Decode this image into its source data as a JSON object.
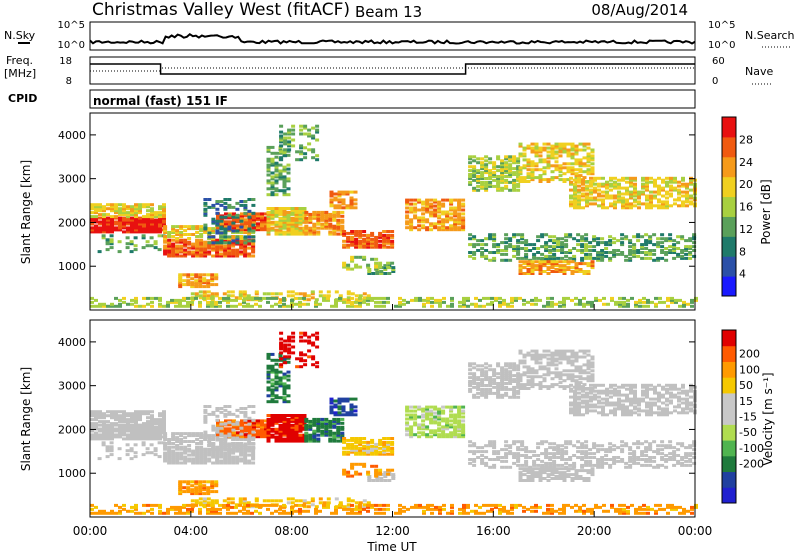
{
  "header": {
    "station": "Christmas Valley West (fitACF)",
    "beam": "Beam 13",
    "date": "08/Aug/2014",
    "mode": "normal (fast) 151 IF"
  },
  "side_labels": {
    "nsky": "N.Sky",
    "nsearch": "N.Search",
    "freq": "Freq.",
    "freq_unit": "[MHz]",
    "nave": "Nave",
    "cpid": "CPID"
  },
  "noise_axis": {
    "ticks": [
      "10^5",
      "10^0"
    ]
  },
  "freq_axis": {
    "ticks": [
      "18",
      "8"
    ],
    "right_ticks": [
      "60",
      "0"
    ]
  },
  "colors": {
    "power_scale": [
      "#1a1aff",
      "#2b50a8",
      "#1f7a6a",
      "#5aa05a",
      "#a8d040",
      "#f0d020",
      "#f59a1a",
      "#f05a10",
      "#e81010"
    ],
    "velocity_scale": [
      "#e00000",
      "#ff5a00",
      "#ff9a00",
      "#f5c800",
      "#c8c8c8",
      "#c8c8c8",
      "#b0dc50",
      "#50b450",
      "#1f7a3c",
      "#2040a0",
      "#2020d0"
    ],
    "ground_scatter": "#c0c0c0"
  },
  "chart_data": [
    {
      "type": "heatmap",
      "name": "power",
      "ylabel": "Slant Range [km]",
      "yticks": [
        "1000",
        "2000",
        "3000",
        "4000"
      ],
      "ylim": [
        0,
        4500
      ],
      "colorbar_label": "Power [dB]",
      "colorbar_ticks": [
        "4",
        "8",
        "12",
        "16",
        "20",
        "24",
        "28"
      ],
      "colorbar_range": [
        0,
        32
      ]
    },
    {
      "type": "heatmap",
      "name": "velocity",
      "ylabel": "Slant Range [km]",
      "yticks": [
        "1000",
        "2000",
        "3000",
        "4000"
      ],
      "ylim": [
        0,
        4500
      ],
      "colorbar_label": "Velocity [m s⁻¹]",
      "colorbar_ticks": [
        "200",
        "100",
        "50",
        "15",
        "-15",
        "-50",
        "-100",
        "-200"
      ],
      "xlabel": "Time UT",
      "xticks": [
        "00:00",
        "04:00",
        "08:00",
        "12:00",
        "16:00",
        "20:00",
        "00:00"
      ],
      "xlim": [
        0,
        24
      ]
    }
  ]
}
